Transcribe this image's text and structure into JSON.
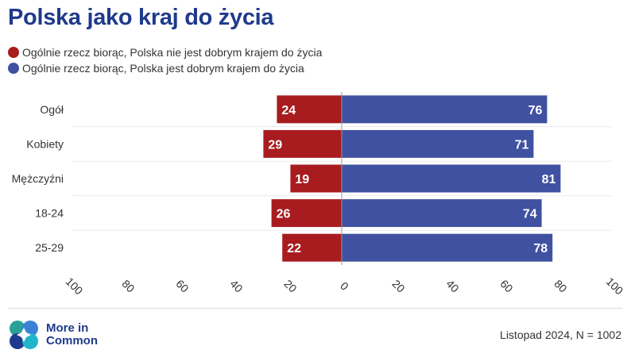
{
  "title": "Polska jako kraj do życia",
  "legend": [
    {
      "label": "Ogólnie rzecz biorąc, Polska nie jest dobrym krajem do życia",
      "color": "#a81c1f"
    },
    {
      "label": "Ogólnie rzecz biorąc, Polska jest dobrym krajem do życia",
      "color": "#3f51a0"
    }
  ],
  "chart_data": {
    "type": "bar",
    "orientation": "horizontal-diverging",
    "categories": [
      "Ogół",
      "Kobiety",
      "Mężczyźni",
      "18-24",
      "25-29"
    ],
    "series": [
      {
        "name": "Ogólnie rzecz biorąc, Polska nie jest dobrym krajem do życia",
        "values": [
          24,
          29,
          19,
          26,
          22
        ],
        "color": "#a81c1f",
        "direction": "left"
      },
      {
        "name": "Ogólnie rzecz biorąc, Polska jest dobrym krajem do życia",
        "values": [
          76,
          71,
          81,
          74,
          78
        ],
        "color": "#3f51a0",
        "direction": "right"
      }
    ],
    "xlim": [
      -100,
      100
    ],
    "x_ticks": [
      -100,
      -80,
      -60,
      -40,
      -20,
      0,
      20,
      40,
      60,
      80,
      100
    ],
    "x_tick_labels": [
      "100",
      "80",
      "60",
      "40",
      "20",
      "0",
      "20",
      "40",
      "60",
      "80",
      "100"
    ],
    "grid": "horizontal row separators",
    "legend_position": "top-left"
  },
  "logo": {
    "line1": "More in",
    "line2": "Common"
  },
  "source": "Listopad 2024, N = 1002"
}
